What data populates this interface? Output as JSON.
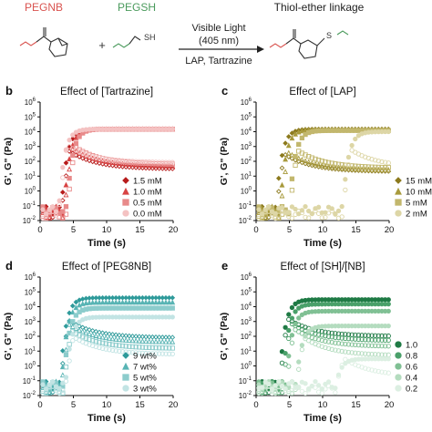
{
  "scheme": {
    "reactant1": "PEGNB",
    "reactant2": "PEGSH",
    "plus": "+",
    "arrow_top": "Visible Light",
    "arrow_top2": "(405 nm)",
    "arrow_bottom": "LAP, Tartrazine",
    "product": "Thiol-ether linkage",
    "sh_label": "SH",
    "s_label": "S",
    "colors": {
      "pegnb": "#d9534f",
      "pegsh": "#4a9a5c"
    }
  },
  "chart_data": [
    {
      "panel_letter": "b",
      "type": "scatter",
      "title": "Effect of [Tartrazine]",
      "xlabel": "Time (s)",
      "ylabel": "G', G\" (Pa)",
      "xlim": [
        0,
        20
      ],
      "x_ticks": [
        "0",
        "5",
        "10",
        "15",
        "20"
      ],
      "ylim_log10": [
        -2,
        6
      ],
      "y_ticks": [
        "10-2",
        "10-1",
        "100",
        "101",
        "102",
        "103",
        "104",
        "105",
        "106"
      ],
      "legend_position": "right-inside",
      "series": [
        {
          "name": "1.5 mM",
          "color": "#b71c1c",
          "marker": "diamond",
          "gel_time": 3.2,
          "G_plateau": 15000,
          "G2_plateau": 30
        },
        {
          "name": "1.0 mM",
          "color": "#d84343",
          "marker": "triangle",
          "gel_time": 3.6,
          "G_plateau": 15000,
          "G2_plateau": 45
        },
        {
          "name": "0.5 mM",
          "color": "#e88a8a",
          "marker": "square",
          "gel_time": 4.0,
          "G_plateau": 15000,
          "G2_plateau": 60
        },
        {
          "name": "0.0 mM",
          "color": "#f4c2c2",
          "marker": "circle",
          "gel_time": 2.8,
          "G_plateau": 15000,
          "G2_plateau": 80
        }
      ]
    },
    {
      "panel_letter": "c",
      "type": "scatter",
      "title": "Effect of [LAP]",
      "xlabel": "Time (s)",
      "ylabel": "G', G\" (Pa)",
      "xlim": [
        0,
        20
      ],
      "x_ticks": [
        "0",
        "5",
        "10",
        "15",
        "20"
      ],
      "ylim_log10": [
        -2,
        6
      ],
      "y_ticks": [
        "10-2",
        "10-1",
        "100",
        "101",
        "102",
        "103",
        "104",
        "105",
        "106"
      ],
      "legend_position": "right-outside",
      "series": [
        {
          "name": "15 mM",
          "color": "#8c7a1e",
          "marker": "diamond",
          "gel_time": 3.0,
          "G_plateau": 15000,
          "G2_plateau": 20
        },
        {
          "name": "10 mM",
          "color": "#a89a3c",
          "marker": "triangle",
          "gel_time": 3.6,
          "G_plateau": 14000,
          "G2_plateau": 25
        },
        {
          "name": "5 mM",
          "color": "#c2b76d",
          "marker": "square",
          "gel_time": 5.0,
          "G_plateau": 12000,
          "G2_plateau": 35
        },
        {
          "name": "2 mM",
          "color": "#ddd6a6",
          "marker": "circle",
          "gel_time": 13.0,
          "G_plateau": 10000,
          "G2_plateau": 40
        }
      ]
    },
    {
      "panel_letter": "d",
      "type": "scatter",
      "title": "Effect of [PEG8NB]",
      "xlabel": "Time (s)",
      "ylabel": "G', G\" (Pa)",
      "xlim": [
        0,
        20
      ],
      "x_ticks": [
        "0",
        "5",
        "10",
        "15",
        "20"
      ],
      "ylim_log10": [
        -2,
        6
      ],
      "y_ticks": [
        "10-2",
        "10-1",
        "100",
        "101",
        "102",
        "103",
        "104",
        "105",
        "106"
      ],
      "legend_position": "right-inside",
      "series": [
        {
          "name": "9 wt%",
          "color": "#2e9a9a",
          "marker": "diamond",
          "gel_time": 3.0,
          "G_plateau": 40000,
          "G2_plateau": 80
        },
        {
          "name": "7 wt%",
          "color": "#58b4b4",
          "marker": "triangle",
          "gel_time": 3.2,
          "G_plateau": 20000,
          "G2_plateau": 40
        },
        {
          "name": "5 wt%",
          "color": "#8ccccc",
          "marker": "square",
          "gel_time": 3.5,
          "G_plateau": 8000,
          "G2_plateau": 15
        },
        {
          "name": "3 wt%",
          "color": "#c2e4e4",
          "marker": "circle",
          "gel_time": 3.8,
          "G_plateau": 2000,
          "G2_plateau": 6
        }
      ]
    },
    {
      "panel_letter": "e",
      "type": "scatter",
      "title": "Effect of [SH]/[NB]",
      "xlabel": "Time (s)",
      "ylabel": "G', G\" (Pa)",
      "xlim": [
        0,
        20
      ],
      "x_ticks": [
        "0",
        "5",
        "10",
        "15",
        "20"
      ],
      "ylim_log10": [
        -2,
        6
      ],
      "y_ticks": [
        "10-2",
        "10-1",
        "100",
        "101",
        "102",
        "103",
        "104",
        "105",
        "106"
      ],
      "legend_position": "right-outside",
      "series": [
        {
          "name": "1.0",
          "color": "#1f7a45",
          "marker": "circle",
          "gel_time": 3.5,
          "G_plateau": 30000,
          "G2_plateau": 100
        },
        {
          "name": "0.8",
          "color": "#4aa06a",
          "marker": "circle",
          "gel_time": 4.0,
          "G_plateau": 15000,
          "G2_plateau": 50
        },
        {
          "name": "0.6",
          "color": "#80c094",
          "marker": "circle",
          "gel_time": 4.5,
          "G_plateau": 5000,
          "G2_plateau": 20
        },
        {
          "name": "0.4",
          "color": "#b4dcbf",
          "marker": "circle",
          "gel_time": 6.0,
          "G_plateau": 500,
          "G2_plateau": 5
        },
        {
          "name": "0.2",
          "color": "#dcefe2",
          "marker": "circle",
          "gel_time": 12.0,
          "G_plateau": 3,
          "G2_plateau": 0.2
        }
      ]
    }
  ]
}
